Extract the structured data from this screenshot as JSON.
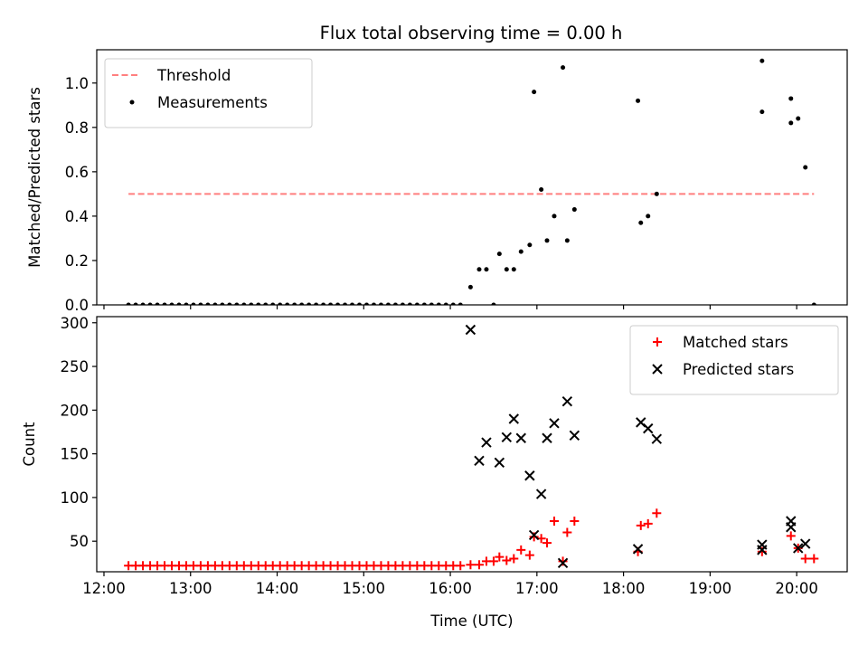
{
  "title": "Flux total observing time = 0.00 h",
  "colors": {
    "threshold": "#ff7f7f",
    "measurement": "#000000",
    "matched": "#ff0000",
    "predicted": "#000000",
    "axis": "#000000",
    "legend_border": "#cccccc"
  },
  "chart_data": [
    {
      "type": "scatter",
      "panel": "top",
      "title": "Flux total observing time = 0.00 h",
      "xlabel": "",
      "ylabel": "Matched/Predicted stars",
      "xlim": [
        "11:55",
        "20:35"
      ],
      "ylim": [
        0,
        1.15
      ],
      "y_ticks": [
        0.0,
        0.2,
        0.4,
        0.6,
        0.8,
        1.0
      ],
      "y_tick_labels": [
        "0.0",
        "0.2",
        "0.4",
        "0.6",
        "0.8",
        "1.0"
      ],
      "legend": {
        "position": "top-left",
        "entries": [
          {
            "label": "Threshold",
            "kind": "dashed-line",
            "color": "#ff7f7f"
          },
          {
            "label": "Measurements",
            "kind": "dot",
            "color": "#000000"
          }
        ]
      },
      "threshold": {
        "name": "Threshold",
        "y": 0.5,
        "x_start": "12:17",
        "x_end": "20:12"
      },
      "series": [
        {
          "name": "Measurements",
          "marker": "dot",
          "points": [
            [
              "12:17",
              0
            ],
            [
              "12:22",
              0
            ],
            [
              "12:27",
              0
            ],
            [
              "12:32",
              0
            ],
            [
              "12:37",
              0
            ],
            [
              "12:42",
              0
            ],
            [
              "12:47",
              0
            ],
            [
              "12:52",
              0
            ],
            [
              "12:57",
              0
            ],
            [
              "13:02",
              0
            ],
            [
              "13:07",
              0
            ],
            [
              "13:12",
              0
            ],
            [
              "13:17",
              0
            ],
            [
              "13:22",
              0
            ],
            [
              "13:27",
              0
            ],
            [
              "13:32",
              0
            ],
            [
              "13:37",
              0
            ],
            [
              "13:42",
              0
            ],
            [
              "13:47",
              0
            ],
            [
              "13:52",
              0
            ],
            [
              "13:57",
              0
            ],
            [
              "14:02",
              0
            ],
            [
              "14:07",
              0
            ],
            [
              "14:12",
              0
            ],
            [
              "14:17",
              0
            ],
            [
              "14:22",
              0
            ],
            [
              "14:27",
              0
            ],
            [
              "14:32",
              0
            ],
            [
              "14:37",
              0
            ],
            [
              "14:42",
              0
            ],
            [
              "14:47",
              0
            ],
            [
              "14:52",
              0
            ],
            [
              "14:57",
              0
            ],
            [
              "15:02",
              0
            ],
            [
              "15:07",
              0
            ],
            [
              "15:12",
              0
            ],
            [
              "15:17",
              0
            ],
            [
              "15:22",
              0
            ],
            [
              "15:27",
              0
            ],
            [
              "15:32",
              0
            ],
            [
              "15:37",
              0
            ],
            [
              "15:42",
              0
            ],
            [
              "15:47",
              0
            ],
            [
              "15:52",
              0
            ],
            [
              "15:57",
              0
            ],
            [
              "16:02",
              0
            ],
            [
              "16:07",
              0
            ],
            [
              "16:14",
              0.08
            ],
            [
              "16:20",
              0.16
            ],
            [
              "16:25",
              0.16
            ],
            [
              "16:30",
              0
            ],
            [
              "16:34",
              0.23
            ],
            [
              "16:39",
              0.16
            ],
            [
              "16:44",
              0.16
            ],
            [
              "16:49",
              0.24
            ],
            [
              "16:55",
              0.27
            ],
            [
              "16:58",
              0.96
            ],
            [
              "17:03",
              0.52
            ],
            [
              "17:07",
              0.29
            ],
            [
              "17:12",
              0.4
            ],
            [
              "17:18",
              1.07
            ],
            [
              "17:21",
              0.29
            ],
            [
              "17:26",
              0.43
            ],
            [
              "18:10",
              0.92
            ],
            [
              "18:12",
              0.37
            ],
            [
              "18:17",
              0.4
            ],
            [
              "18:23",
              0.5
            ],
            [
              "19:36",
              1.1
            ],
            [
              "19:36",
              0.87
            ],
            [
              "19:56",
              0.93
            ],
            [
              "19:56",
              0.82
            ],
            [
              "20:01",
              0.84
            ],
            [
              "20:06",
              0.62
            ],
            [
              "20:12",
              0
            ]
          ]
        }
      ]
    },
    {
      "type": "scatter",
      "panel": "bottom",
      "title": "",
      "xlabel": "Time (UTC)",
      "ylabel": "Count",
      "xlim": [
        "11:55",
        "20:35"
      ],
      "ylim": [
        15,
        307
      ],
      "x_ticks": [
        "12:00",
        "13:00",
        "14:00",
        "15:00",
        "16:00",
        "17:00",
        "18:00",
        "19:00",
        "20:00"
      ],
      "y_ticks": [
        50,
        100,
        150,
        200,
        250,
        300
      ],
      "y_tick_labels": [
        "50",
        "100",
        "150",
        "200",
        "250",
        "300"
      ],
      "legend": {
        "position": "top-right",
        "entries": [
          {
            "label": "Matched stars",
            "kind": "plus",
            "color": "#ff0000"
          },
          {
            "label": "Predicted stars",
            "kind": "x",
            "color": "#000000"
          }
        ]
      },
      "series": [
        {
          "name": "Matched stars",
          "marker": "plus",
          "points": [
            [
              "12:17",
              22
            ],
            [
              "12:22",
              22
            ],
            [
              "12:27",
              22
            ],
            [
              "12:32",
              22
            ],
            [
              "12:37",
              22
            ],
            [
              "12:42",
              22
            ],
            [
              "12:47",
              22
            ],
            [
              "12:52",
              22
            ],
            [
              "12:57",
              22
            ],
            [
              "13:02",
              22
            ],
            [
              "13:07",
              22
            ],
            [
              "13:12",
              22
            ],
            [
              "13:17",
              22
            ],
            [
              "13:22",
              22
            ],
            [
              "13:27",
              22
            ],
            [
              "13:32",
              22
            ],
            [
              "13:37",
              22
            ],
            [
              "13:42",
              22
            ],
            [
              "13:47",
              22
            ],
            [
              "13:52",
              22
            ],
            [
              "13:57",
              22
            ],
            [
              "14:02",
              22
            ],
            [
              "14:07",
              22
            ],
            [
              "14:12",
              22
            ],
            [
              "14:17",
              22
            ],
            [
              "14:22",
              22
            ],
            [
              "14:27",
              22
            ],
            [
              "14:32",
              22
            ],
            [
              "14:37",
              22
            ],
            [
              "14:42",
              22
            ],
            [
              "14:47",
              22
            ],
            [
              "14:52",
              22
            ],
            [
              "14:57",
              22
            ],
            [
              "15:02",
              22
            ],
            [
              "15:07",
              22
            ],
            [
              "15:12",
              22
            ],
            [
              "15:17",
              22
            ],
            [
              "15:22",
              22
            ],
            [
              "15:27",
              22
            ],
            [
              "15:32",
              22
            ],
            [
              "15:37",
              22
            ],
            [
              "15:42",
              22
            ],
            [
              "15:47",
              22
            ],
            [
              "15:52",
              22
            ],
            [
              "15:57",
              22
            ],
            [
              "16:02",
              22
            ],
            [
              "16:07",
              22
            ],
            [
              "16:14",
              23
            ],
            [
              "16:20",
              23
            ],
            [
              "16:25",
              27
            ],
            [
              "16:30",
              27
            ],
            [
              "16:34",
              32
            ],
            [
              "16:39",
              28
            ],
            [
              "16:44",
              30
            ],
            [
              "16:49",
              40
            ],
            [
              "16:55",
              34
            ],
            [
              "16:58",
              55
            ],
            [
              "17:03",
              53
            ],
            [
              "17:07",
              48
            ],
            [
              "17:12",
              73
            ],
            [
              "17:18",
              27
            ],
            [
              "17:21",
              60
            ],
            [
              "17:26",
              73
            ],
            [
              "18:10",
              38
            ],
            [
              "18:12",
              68
            ],
            [
              "18:17",
              70
            ],
            [
              "18:23",
              82
            ],
            [
              "19:36",
              38
            ],
            [
              "19:56",
              56
            ],
            [
              "20:01",
              42
            ],
            [
              "20:06",
              30
            ],
            [
              "20:12",
              30
            ]
          ]
        },
        {
          "name": "Predicted stars",
          "marker": "x",
          "points": [
            [
              "16:14",
              292
            ],
            [
              "16:20",
              142
            ],
            [
              "16:25",
              163
            ],
            [
              "16:34",
              140
            ],
            [
              "16:39",
              169
            ],
            [
              "16:44",
              190
            ],
            [
              "16:49",
              168
            ],
            [
              "16:55",
              125
            ],
            [
              "16:58",
              57
            ],
            [
              "17:03",
              104
            ],
            [
              "17:07",
              168
            ],
            [
              "17:12",
              185
            ],
            [
              "17:18",
              25
            ],
            [
              "17:21",
              210
            ],
            [
              "17:26",
              171
            ],
            [
              "18:10",
              41
            ],
            [
              "18:12",
              186
            ],
            [
              "18:17",
              179
            ],
            [
              "18:23",
              167
            ],
            [
              "19:36",
              40
            ],
            [
              "19:36",
              46
            ],
            [
              "19:56",
              73
            ],
            [
              "19:56",
              66
            ],
            [
              "20:01",
              42
            ],
            [
              "20:06",
              47
            ]
          ]
        }
      ]
    }
  ]
}
